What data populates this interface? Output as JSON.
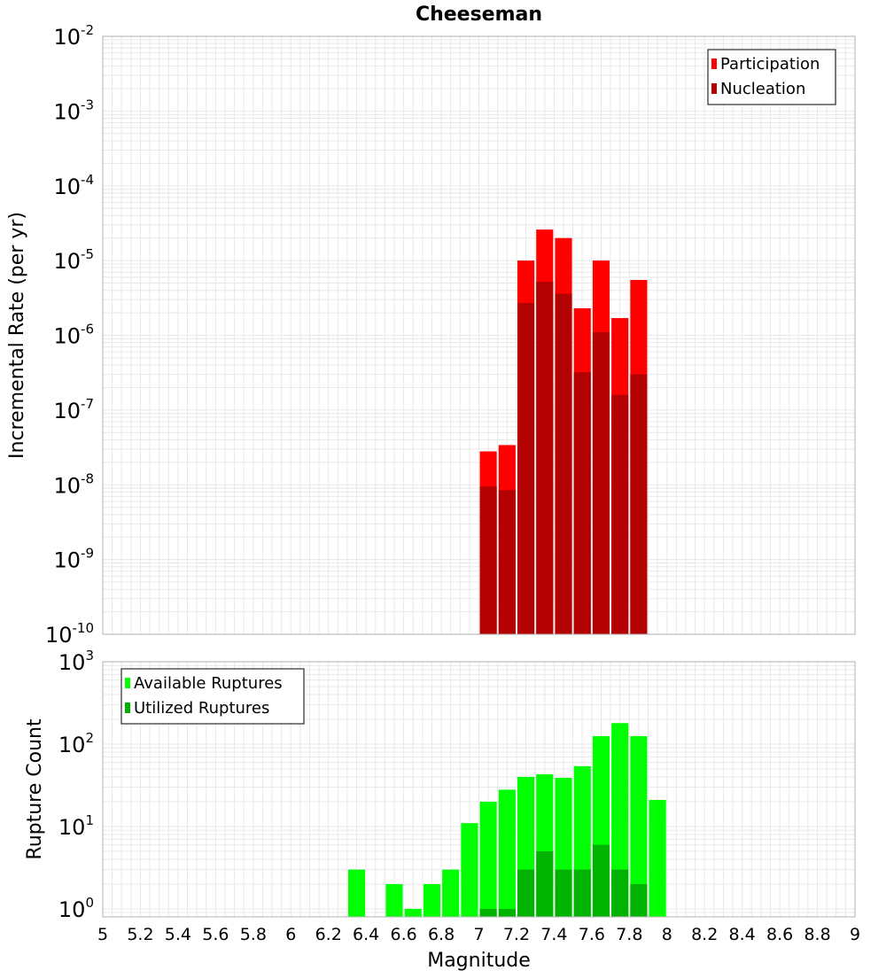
{
  "title": "Cheeseman",
  "xlabel": "Magnitude",
  "x_ticks": [
    "5",
    "5.2",
    "5.4",
    "5.6",
    "5.8",
    "6",
    "6.2",
    "6.4",
    "6.6",
    "6.8",
    "7",
    "7.2",
    "7.4",
    "7.6",
    "7.8",
    "8",
    "8.2",
    "8.4",
    "8.6",
    "8.8",
    "9"
  ],
  "colors": {
    "participation": "#ff0000",
    "nucleation": "#b30000",
    "available": "#00ff00",
    "utilized": "#00b300",
    "grid": "#e8e8e8",
    "axis": "#b0b0b0"
  },
  "chart_data": [
    {
      "type": "bar",
      "title": "Cheeseman",
      "xlabel": "Magnitude",
      "ylabel": "Incremental Rate (per yr)",
      "yscale": "log",
      "xlim": [
        5,
        9
      ],
      "ylim": [
        1e-10,
        0.01
      ],
      "y_tick_exponents": [
        "-10",
        "-9",
        "-8",
        "-7",
        "-6",
        "-5",
        "-4",
        "-3",
        "-2"
      ],
      "bar_width": 0.09,
      "legend_position": "top-right",
      "x": [
        7.05,
        7.15,
        7.25,
        7.35,
        7.45,
        7.55,
        7.65,
        7.75,
        7.85
      ],
      "series": [
        {
          "name": "Participation",
          "values": [
            2.8e-08,
            3.4e-08,
            1e-05,
            2.6e-05,
            2e-05,
            2.3e-06,
            1e-05,
            1.7e-06,
            5.5e-06
          ]
        },
        {
          "name": "Nucleation",
          "values": [
            9.5e-09,
            8.5e-09,
            2.7e-06,
            5.2e-06,
            3.6e-06,
            3.2e-07,
            1.1e-06,
            1.6e-07,
            3e-07
          ]
        }
      ]
    },
    {
      "type": "bar",
      "xlabel": "Magnitude",
      "ylabel": "Rupture Count",
      "yscale": "log",
      "xlim": [
        5,
        9
      ],
      "ylim": [
        0.8,
        1000
      ],
      "y_tick_exponents": [
        "0",
        "1",
        "2",
        "3"
      ],
      "bar_width": 0.09,
      "legend_position": "top-left",
      "x": [
        6.35,
        6.45,
        6.55,
        6.65,
        6.75,
        6.85,
        6.95,
        7.05,
        7.15,
        7.25,
        7.35,
        7.45,
        7.55,
        7.65,
        7.75,
        7.85,
        7.95
      ],
      "series": [
        {
          "name": "Available Ruptures",
          "values": [
            3,
            0,
            2,
            1,
            2,
            3,
            11,
            20,
            28,
            40,
            43,
            39,
            54,
            125,
            180,
            125,
            21
          ]
        },
        {
          "name": "Utilized Ruptures",
          "values": [
            0,
            0,
            0,
            0,
            0,
            0,
            0,
            1,
            1,
            3,
            5,
            3,
            3,
            6,
            3,
            2,
            0
          ]
        }
      ]
    }
  ]
}
